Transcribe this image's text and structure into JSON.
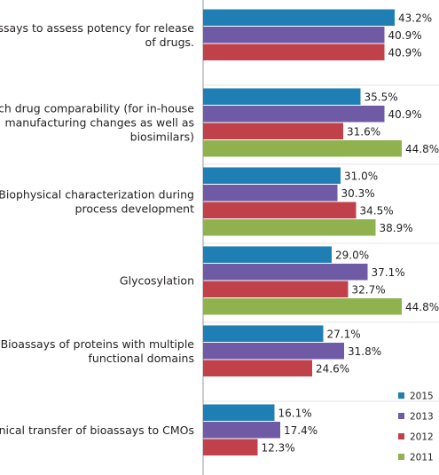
{
  "chart_data": {
    "type": "bar",
    "orientation": "horizontal",
    "categories": [
      [
        "Bio-assays to assess potency for release",
        "of drugs."
      ],
      [
        "Biotech drug comparability (for in-house",
        "manufacturing changes as well as",
        "biosimilars)"
      ],
      [
        "Biophysical characterization during",
        "process development"
      ],
      [
        "Glycosylation"
      ],
      [
        "Bioassays of proteins with multiple",
        "functional domains"
      ],
      [
        "Technical transfer of bioassays to CMOs"
      ]
    ],
    "series": [
      {
        "name": "2015",
        "color": "#1f7fb4",
        "values": [
          43.2,
          35.5,
          31.0,
          29.0,
          27.1,
          16.1
        ]
      },
      {
        "name": "2013",
        "color": "#6f5aa6",
        "values": [
          40.9,
          40.9,
          30.3,
          37.1,
          31.8,
          17.4
        ]
      },
      {
        "name": "2012",
        "color": "#c1414a",
        "values": [
          40.9,
          31.6,
          34.5,
          32.7,
          24.6,
          12.3
        ]
      },
      {
        "name": "2011",
        "color": "#8fb14e",
        "values": [
          null,
          44.8,
          38.9,
          44.8,
          null,
          null
        ]
      }
    ],
    "value_format": "%",
    "xlim": [
      0,
      50
    ],
    "grid": false,
    "legend_position": "bottom-right"
  }
}
